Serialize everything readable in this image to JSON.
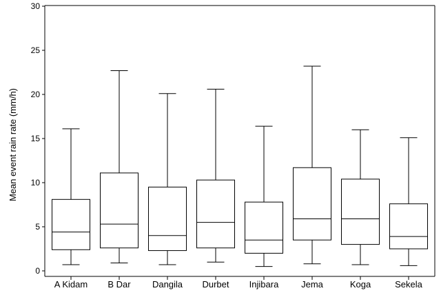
{
  "chart_data": {
    "type": "boxplot",
    "title": "",
    "xlabel": "",
    "ylabel": "Mean event rain rate (mm/h)",
    "ylim": [
      0,
      30
    ],
    "yticks": [
      0,
      5,
      10,
      15,
      20,
      25,
      30
    ],
    "ytick_labels": [
      "0",
      "5",
      "10",
      "15",
      "20",
      "25",
      "30"
    ],
    "grid": false,
    "legend": "none",
    "categories": [
      "A Kidam",
      "B Dar",
      "Dangila",
      "Durbet",
      "Injibara",
      "Jema",
      "Koga",
      "Sekela"
    ],
    "series": [
      {
        "boxes": [
          {
            "whisker_low": 0.7,
            "q1": 2.4,
            "median": 4.4,
            "q3": 8.1,
            "whisker_high": 16.1
          },
          {
            "whisker_low": 0.9,
            "q1": 2.6,
            "median": 5.3,
            "q3": 11.1,
            "whisker_high": 22.7
          },
          {
            "whisker_low": 0.7,
            "q1": 2.3,
            "median": 4.0,
            "q3": 9.5,
            "whisker_high": 20.1
          },
          {
            "whisker_low": 1.0,
            "q1": 2.6,
            "median": 5.5,
            "q3": 10.3,
            "whisker_high": 20.6
          },
          {
            "whisker_low": 0.5,
            "q1": 2.0,
            "median": 3.5,
            "q3": 7.8,
            "whisker_high": 16.4
          },
          {
            "whisker_low": 0.8,
            "q1": 3.5,
            "median": 5.9,
            "q3": 11.7,
            "whisker_high": 23.2
          },
          {
            "whisker_low": 0.7,
            "q1": 3.0,
            "median": 5.9,
            "q3": 10.4,
            "whisker_high": 16.0
          },
          {
            "whisker_low": 0.6,
            "q1": 2.5,
            "median": 3.9,
            "q3": 7.6,
            "whisker_high": 15.1
          }
        ]
      }
    ],
    "colors": {
      "box_fill": "#ffffff",
      "stroke": "#000000",
      "background": "#ffffff"
    }
  }
}
